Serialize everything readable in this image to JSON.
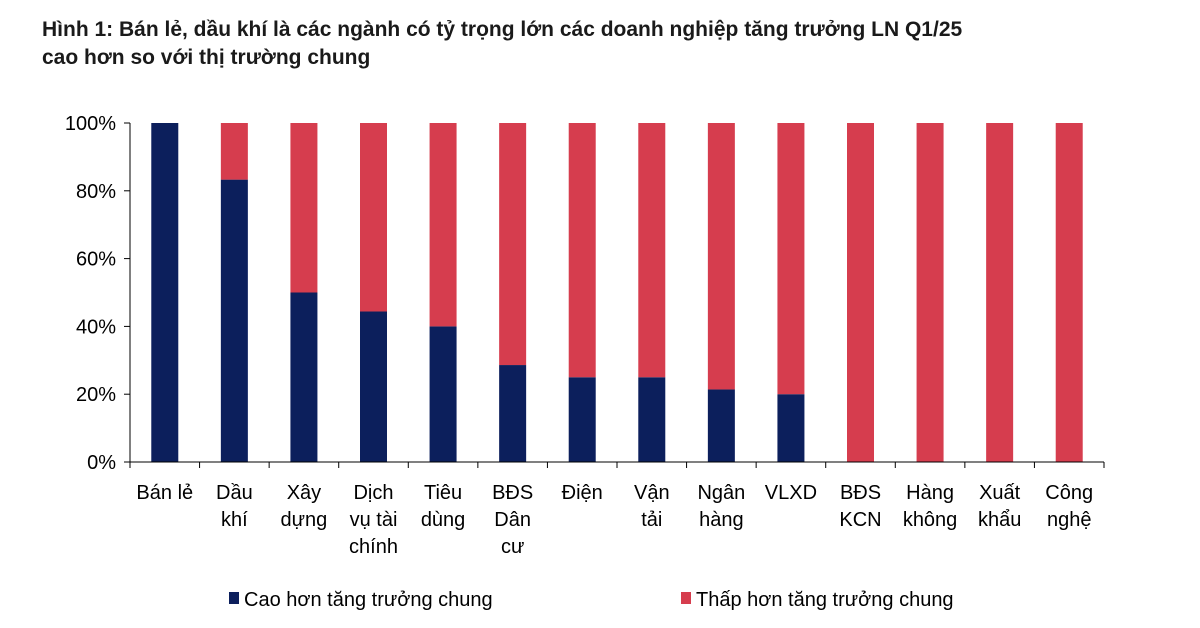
{
  "title": {
    "line1": "Hình 1: Bán lẻ, dầu khí là các ngành có tỷ trọng lớn các doanh nghiệp tăng trưởng LN Q1/25",
    "line2": "cao hơn so với thị trường chung"
  },
  "chart_data": {
    "type": "bar",
    "stacked": true,
    "categories": [
      [
        "Bán lẻ"
      ],
      [
        "Dầu",
        "khí"
      ],
      [
        "Xây",
        "dựng"
      ],
      [
        "Dịch",
        "vụ tài",
        "chính"
      ],
      [
        "Tiêu",
        "dùng"
      ],
      [
        "BĐS",
        "Dân",
        "cư"
      ],
      [
        "Điện"
      ],
      [
        "Vận",
        "tải"
      ],
      [
        "Ngân",
        "hàng"
      ],
      [
        "VLXD"
      ],
      [
        "BĐS",
        "KCN"
      ],
      [
        "Hàng",
        "không"
      ],
      [
        "Xuất",
        "khẩu"
      ],
      [
        "Công",
        "nghệ"
      ]
    ],
    "series": [
      {
        "name": "Cao hơn tăng trưởng chung",
        "color": "#0c1f5c",
        "values": [
          100,
          83.3,
          50,
          44.4,
          40,
          28.6,
          25,
          25,
          21.4,
          20,
          0,
          0,
          0,
          0
        ]
      },
      {
        "name": "Thấp hơn tăng trưởng chung",
        "color": "#d63d4e",
        "values": [
          0,
          16.7,
          50,
          55.6,
          60,
          71.4,
          75,
          75,
          78.6,
          80,
          100,
          100,
          100,
          100
        ]
      }
    ],
    "ylim": [
      0,
      100
    ],
    "yticks": [
      "0%",
      "20%",
      "40%",
      "60%",
      "80%",
      "100%"
    ],
    "grid": false,
    "legend_position": "bottom"
  }
}
